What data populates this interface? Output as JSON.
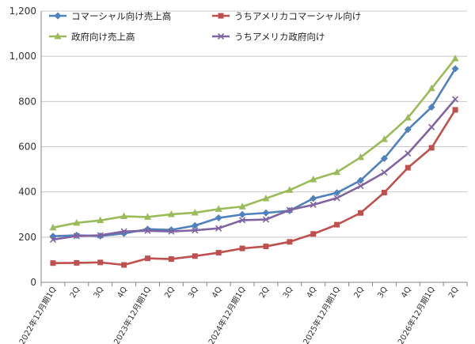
{
  "chart_data": {
    "type": "line",
    "title": "",
    "xlabel": "",
    "ylabel": "",
    "ylim": [
      0,
      1200
    ],
    "yticks": [
      0,
      200,
      400,
      600,
      800,
      1000,
      1200
    ],
    "ytick_labels": [
      "0",
      "200",
      "400",
      "600",
      "800",
      "1,000",
      "1,200"
    ],
    "grid": "horizontal",
    "legend_position": "top",
    "categories": [
      "2022年12月期1Q",
      "2Q",
      "3Q",
      "4Q",
      "2023年12月期1Q",
      "2Q",
      "3Q",
      "4Q",
      "2024年12月期1Q",
      "2Q",
      "3Q",
      "4Q",
      "2025年12月期1Q",
      "2Q",
      "3Q",
      "4Q",
      "2026年12月期1Q",
      "2Q"
    ],
    "series": [
      {
        "name": "コマーシャル向け売上高",
        "color": "#4F81BD",
        "marker": "diamond",
        "values": [
          204,
          208,
          205,
          216,
          235,
          232,
          251,
          285,
          300,
          307,
          317,
          371,
          396,
          451,
          548,
          676,
          775,
          945
        ]
      },
      {
        "name": "うちアメリカコマーシャル向け",
        "color": "#C0504D",
        "marker": "square",
        "values": [
          85,
          86,
          88,
          77,
          106,
          103,
          116,
          131,
          150,
          159,
          179,
          214,
          255,
          307,
          397,
          507,
          595,
          763
        ]
      },
      {
        "name": "政府向け売上高",
        "color": "#9BBB59",
        "marker": "triangle",
        "values": [
          242,
          263,
          274,
          292,
          289,
          301,
          308,
          324,
          335,
          371,
          408,
          455,
          487,
          553,
          633,
          728,
          858,
          990
        ]
      },
      {
        "name": "うちアメリカ政府向け",
        "color": "#8064A2",
        "marker": "x",
        "values": [
          189,
          205,
          208,
          225,
          228,
          225,
          230,
          239,
          275,
          278,
          320,
          343,
          373,
          426,
          486,
          570,
          687,
          810
        ]
      }
    ]
  }
}
